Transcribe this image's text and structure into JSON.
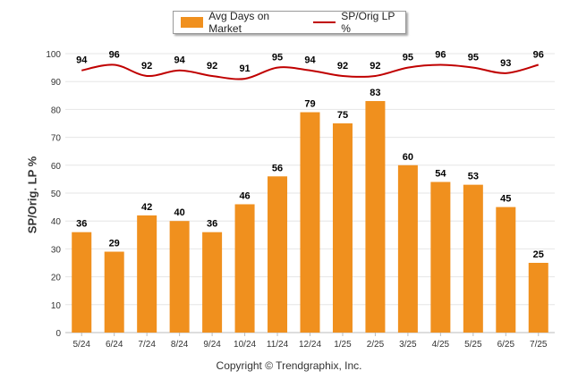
{
  "legend": {
    "bar_label": "Avg Days on Market",
    "line_label": "SP/Orig LP %"
  },
  "copyright": "Copyright © Trendgraphix, Inc.",
  "chart_data": {
    "type": "bar",
    "categories": [
      "5/24",
      "6/24",
      "7/24",
      "8/24",
      "9/24",
      "10/24",
      "11/24",
      "12/24",
      "1/25",
      "2/25",
      "3/25",
      "4/25",
      "5/25",
      "6/25",
      "7/25"
    ],
    "series": [
      {
        "name": "Avg Days on Market",
        "type": "bar",
        "color": "#f0901e",
        "values": [
          36,
          29,
          42,
          40,
          36,
          46,
          56,
          79,
          75,
          83,
          60,
          54,
          53,
          45,
          25
        ]
      },
      {
        "name": "SP/Orig LP %",
        "type": "line",
        "color": "#c00000",
        "values": [
          94,
          96,
          92,
          94,
          92,
          91,
          95,
          94,
          92,
          92,
          95,
          96,
          95,
          93,
          96
        ]
      }
    ],
    "ylabel": "SP/Orig. LP %",
    "ylim": [
      0,
      100
    ],
    "yticks": [
      0,
      10,
      20,
      30,
      40,
      50,
      60,
      70,
      80,
      90,
      100
    ],
    "grid": true,
    "legend_position": "top"
  }
}
